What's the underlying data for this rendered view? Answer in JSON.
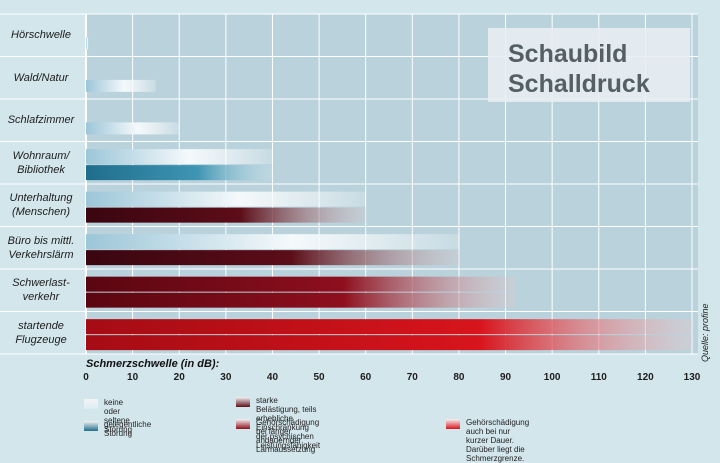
{
  "title_lines": [
    "Schaubild",
    "Schalldruck"
  ],
  "source": "Quelle: profine",
  "axis_title": "Schmerzschwelle (in dB):",
  "colors": {
    "plot_bg": "#b9d2dc",
    "grid": "#ffffff",
    "keine": "#dcecf4",
    "gelegentlich": "#1f6d8c",
    "stark": "#5c0d18",
    "laenger": "#8e0f1e",
    "kurz": "#d8141c"
  },
  "chart_data": {
    "type": "bar",
    "orientation": "horizontal",
    "title": "Schaubild Schalldruck",
    "xlabel": "Schmerzschwelle (in dB):",
    "xlim": [
      0,
      130
    ],
    "ticks": [
      0,
      10,
      20,
      30,
      40,
      50,
      60,
      70,
      80,
      90,
      100,
      110,
      120,
      130
    ],
    "grid": true,
    "categories": [
      "Hörschwelle",
      "Wald/Natur",
      "Schlafzimmer",
      "Wohnraum/\nBibliothek",
      "Unterhaltung\n(Menschen)",
      "Büro bis mittl.\nVerkehrslärm",
      "Schwerlast-\nverkehr",
      "startende\nFlugzeuge"
    ],
    "bars": [
      [
        {
          "value": 0.5,
          "cls": "keine"
        }
      ],
      [
        {
          "value": 15,
          "cls": "keine"
        }
      ],
      [
        {
          "value": 20,
          "cls": "keine"
        }
      ],
      [
        {
          "value": 40,
          "cls": "keine"
        },
        {
          "value": 40,
          "cls": "gelegentlich"
        }
      ],
      [
        {
          "value": 60,
          "cls": "keine"
        },
        {
          "value": 60,
          "cls": "stark"
        }
      ],
      [
        {
          "value": 80,
          "cls": "keine"
        },
        {
          "value": 80,
          "cls": "stark"
        }
      ],
      [
        {
          "value": 92,
          "cls": "laenger"
        },
        {
          "value": 92,
          "cls": "laenger"
        }
      ],
      [
        {
          "value": 130,
          "cls": "kurz"
        },
        {
          "value": 130,
          "cls": "kurz"
        }
      ]
    ]
  },
  "legend": [
    {
      "cls": "keine",
      "text": "keine oder seltene Störung"
    },
    {
      "cls": "gelegentlich",
      "text": "gelegentliche Störung"
    },
    {
      "cls": "stark",
      "text": "starke Belästigung, teils erhebliche Einschränkung\nder psychischen Leistungsfähigkeit"
    },
    {
      "cls": "laenger",
      "text": "Gehörschädigung bei länger\nandauernder Lärmaussetzung"
    },
    {
      "cls": "kurz",
      "text": "Gehörschädigung auch bei nur kurzer Dauer.\nDarüber liegt die Schmerzgrenze."
    }
  ]
}
